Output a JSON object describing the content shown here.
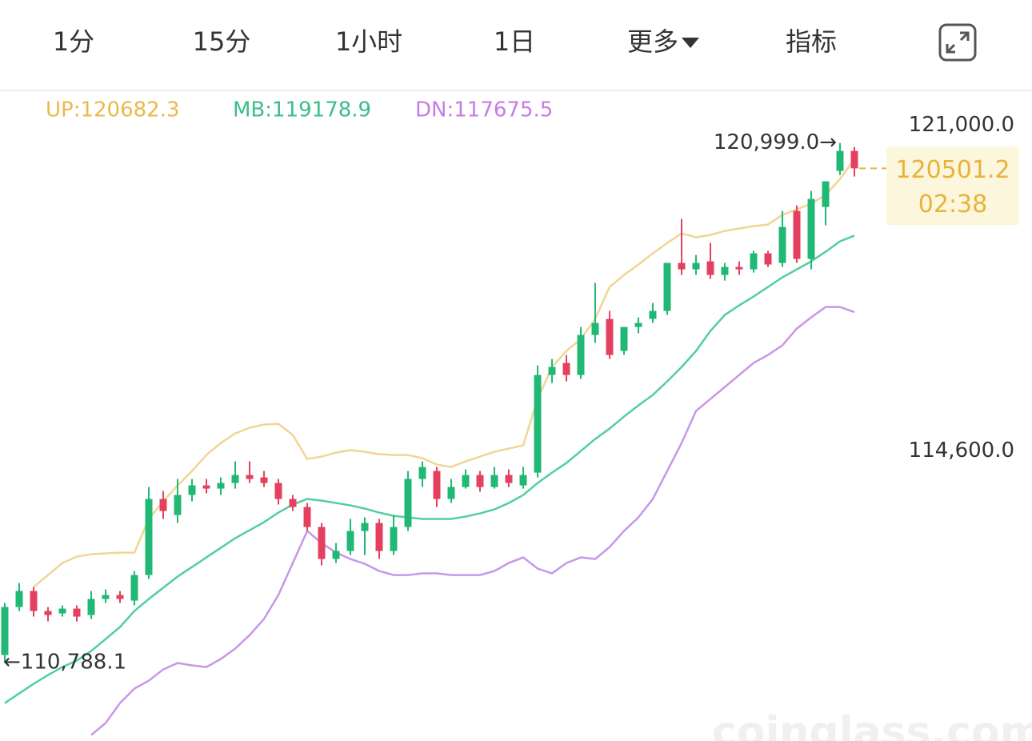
{
  "header": {
    "tabs": [
      "1分",
      "15分",
      "1小时",
      "1日",
      "更多",
      "指标"
    ],
    "active_tab": 2,
    "active_color": "#f0b90b"
  },
  "chart_data": {
    "type": "candlestick",
    "open": [
      110939,
      111882,
      112197,
      111804,
      111757,
      111851,
      111725,
      112040,
      112118,
      112008,
      112511,
      114005,
      113690,
      114083,
      114272,
      114209,
      114319,
      114476,
      114429,
      114319,
      114005,
      113847,
      113454,
      112826,
      112983,
      113376,
      113533,
      112983,
      113454,
      114398,
      114555,
      114005,
      114240,
      114476,
      114240,
      114476,
      114272,
      114523,
      116441,
      116677,
      116441,
      117227,
      117542,
      116913,
      117384,
      117542,
      117699,
      118642,
      118516,
      118673,
      118406,
      118563,
      118516,
      118831,
      118642,
      119664,
      118721,
      119742,
      120450,
      120843
    ],
    "high": [
      111961,
      112354,
      112275,
      111882,
      111914,
      111914,
      112197,
      112228,
      112197,
      112590,
      114240,
      114162,
      114398,
      114398,
      114398,
      114429,
      114744,
      114744,
      114555,
      114398,
      114083,
      113926,
      113533,
      113140,
      113612,
      113643,
      113612,
      113690,
      114555,
      114744,
      114633,
      114398,
      114586,
      114555,
      114633,
      114586,
      114633,
      116630,
      116756,
      116834,
      117384,
      118249,
      117699,
      117384,
      117573,
      117856,
      118642,
      119507,
      118799,
      119035,
      118642,
      118673,
      118878,
      118878,
      119664,
      119774,
      120057,
      120245,
      120999.0,
      120921
    ],
    "low": [
      110788.1,
      111804,
      111694,
      111600,
      111694,
      111600,
      111647,
      111961,
      111961,
      111914,
      112433,
      113612,
      113533,
      113958,
      114115,
      114083,
      114209,
      114319,
      114240,
      113895,
      113769,
      113376,
      112700,
      112747,
      112904,
      112904,
      112826,
      112904,
      113376,
      114240,
      113847,
      113926,
      114209,
      114146,
      114209,
      114240,
      114209,
      114429,
      116284,
      116316,
      116363,
      117070,
      116756,
      116834,
      117259,
      117463,
      117620,
      118406,
      118406,
      118328,
      118296,
      118406,
      118453,
      118563,
      118563,
      118642,
      118516,
      119381,
      120371,
      120340
    ],
    "close": [
      111882,
      112197,
      111804,
      111725,
      111851,
      111694,
      112040,
      112118,
      112040,
      112511,
      114005,
      113769,
      114083,
      114272,
      114209,
      114319,
      114476,
      114398,
      114319,
      114005,
      113847,
      113454,
      112826,
      112983,
      113376,
      113533,
      112983,
      113454,
      114398,
      114633,
      114005,
      114240,
      114476,
      114240,
      114476,
      114319,
      114476,
      116441,
      116598,
      116441,
      117227,
      117463,
      116834,
      117384,
      117463,
      117699,
      118642,
      118516,
      118642,
      118406,
      118563,
      118516,
      118831,
      118611,
      119349,
      118721,
      119900,
      120245,
      120843,
      120501.2
    ],
    "up_color": "#20b874",
    "down_color": "#e4405f",
    "series": [
      {
        "name": "UP:120682.3",
        "color": "#f0d694",
        "label_color": "#e9b94a",
        "values": [
          null,
          null,
          112275,
          112511,
          112747,
          112873,
          112920,
          112936,
          112951,
          112951,
          113612,
          113957,
          114272,
          114555,
          114869,
          115105,
          115294,
          115404,
          115467,
          115482,
          115262,
          114791,
          114838,
          114916,
          114964,
          114932,
          114885,
          114869,
          114869,
          114806,
          114681,
          114633,
          114743,
          114838,
          114932,
          114995,
          115058,
          115970,
          116598,
          116913,
          117149,
          117542,
          118170,
          118406,
          118611,
          118831,
          119035,
          119224,
          119145,
          119192,
          119271,
          119318,
          119365,
          119397,
          119585,
          119695,
          119805,
          119978,
          120293,
          120682.3
        ]
      },
      {
        "name": "MB:119178.9",
        "color": "#52cf9b",
        "label_color": "#3dbd8a",
        "values": [
          109996,
          110185,
          110373,
          110546,
          110703,
          110829,
          111018,
          111254,
          111489,
          111804,
          112040,
          112260,
          112480,
          112668,
          112857,
          113046,
          113234,
          113392,
          113549,
          113737,
          113895,
          114005,
          113973,
          113926,
          113879,
          113816,
          113737,
          113674,
          113643,
          113612,
          113612,
          113612,
          113659,
          113722,
          113800,
          113926,
          114083,
          114319,
          114523,
          114712,
          114948,
          115184,
          115388,
          115624,
          115844,
          116048,
          116315,
          116598,
          116913,
          117306,
          117620,
          117809,
          117982,
          118170,
          118359,
          118516,
          118673,
          118862,
          119066,
          119178.9
        ]
      },
      {
        "name": "DN:117675.5",
        "color": "#c797ea",
        "label_color": "#c77be6",
        "values": [
          null,
          null,
          null,
          null,
          null,
          null,
          109367,
          109603,
          109996,
          110279,
          110436,
          110656,
          110782,
          110735,
          110703,
          110861,
          111065,
          111332,
          111647,
          112118,
          112747,
          113376,
          113140,
          112951,
          112826,
          112731,
          112590,
          112511,
          112511,
          112543,
          112543,
          112511,
          112511,
          112511,
          112590,
          112747,
          112857,
          112637,
          112543,
          112747,
          112857,
          112826,
          113061,
          113376,
          113643,
          114005,
          114555,
          115105,
          115734,
          115970,
          116205,
          116441,
          116677,
          116834,
          117023,
          117353,
          117573,
          117777,
          117777,
          117675.5
        ]
      }
    ],
    "ylim": [
      109250,
      122000
    ],
    "yticks": [
      {
        "value": 121000,
        "label": "121,000.0"
      },
      {
        "value": 114600,
        "label": "114,600.0"
      }
    ],
    "annotations": {
      "high": {
        "value": 120999.0,
        "label": "120,999.0→"
      },
      "low": {
        "value": 110788.1,
        "label": "←110,788.1"
      },
      "last": {
        "value": 120501.2,
        "countdown": "02:38",
        "color": "#e8b33a",
        "box_color": "#fbf6dc"
      }
    },
    "watermark": "coinglass.com"
  }
}
